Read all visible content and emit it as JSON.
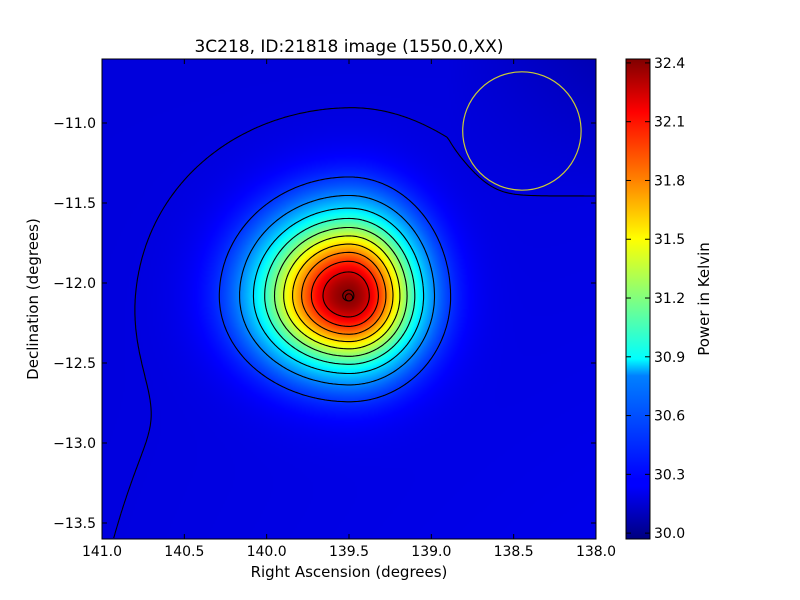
{
  "chart_data": {
    "type": "heatmap",
    "title": "3C218, ID:21818 image (1550.0,XX)",
    "xlabel": "Right Ascension (degrees)",
    "ylabel": "Declination (degrees)",
    "xlim": [
      141.0,
      138.0
    ],
    "ylim": [
      -13.6,
      -10.6
    ],
    "xticks": [
      141.0,
      140.5,
      140.0,
      139.5,
      139.0,
      138.5,
      138.0
    ],
    "xtick_labels": [
      "141.0",
      "140.5",
      "140.0",
      "139.5",
      "139.0",
      "138.5",
      "138.0"
    ],
    "yticks": [
      -11.0,
      -11.5,
      -12.0,
      -12.5,
      -13.0,
      -13.5
    ],
    "ytick_labels": [
      "−11.0",
      "−11.5",
      "−12.0",
      "−12.5",
      "−13.0",
      "−13.5"
    ],
    "colorbar": {
      "label": "Power in Kelvin",
      "range": [
        29.97,
        32.42
      ],
      "ticks": [
        30.0,
        30.3,
        30.6,
        30.9,
        31.2,
        31.5,
        31.8,
        32.1,
        32.4
      ],
      "tick_labels": [
        "30.0",
        "30.3",
        "30.6",
        "30.9",
        "31.2",
        "31.5",
        "31.8",
        "32.1",
        "32.4"
      ],
      "colormap": "jet"
    },
    "peak": {
      "ra": 139.5,
      "dec": -12.08,
      "value": 32.4
    },
    "background_level": 30.2,
    "contour_levels": [
      30.2,
      30.4,
      30.6,
      30.8,
      31.0,
      31.2,
      31.4,
      31.6,
      31.8,
      32.0,
      32.2,
      32.39
    ],
    "beam_circle": {
      "ra": 138.45,
      "dec": -11.05,
      "radius_deg": 0.37,
      "color": "#cccc33"
    },
    "source_marker": {
      "ra": 139.5,
      "dec": -12.09
    },
    "grid": false
  }
}
